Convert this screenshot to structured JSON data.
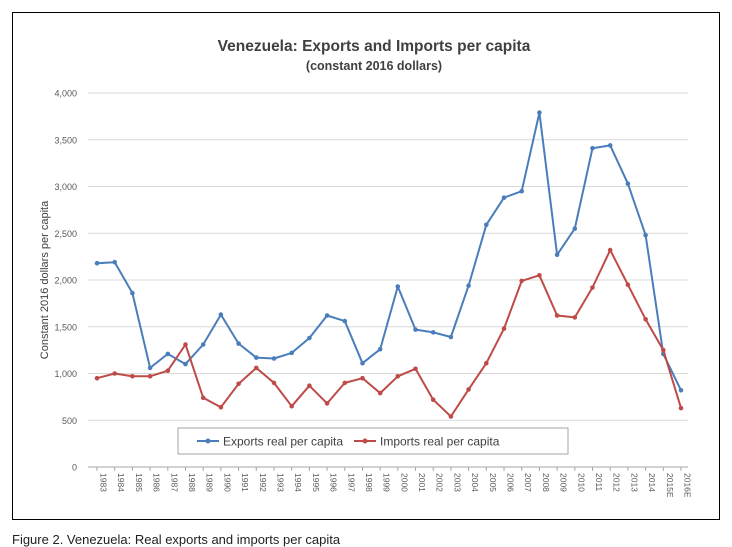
{
  "caption": "Figure 2. Venezuela: Real exports and imports per capita",
  "chart_data": {
    "type": "line",
    "title": "Venezuela: Exports and Imports per capita",
    "subtitle": "(constant 2016 dollars)",
    "xlabel": "",
    "ylabel": "Constant 2016 dollars per capita",
    "ylim": [
      0,
      4000
    ],
    "yticks": [
      "0",
      "500",
      "1,000",
      "1,500",
      "2,000",
      "2,500",
      "3,000",
      "3,500",
      "4,000"
    ],
    "grid": true,
    "legend_position": "bottom-center",
    "categories": [
      "1983",
      "1984",
      "1985",
      "1986",
      "1987",
      "1988",
      "1989",
      "1990",
      "1991",
      "1992",
      "1993",
      "1994",
      "1995",
      "1996",
      "1997",
      "1998",
      "1999",
      "2000",
      "2001",
      "2002",
      "2003",
      "2004",
      "2005",
      "2006",
      "2007",
      "2008",
      "2009",
      "2010",
      "2011",
      "2012",
      "2013",
      "2014",
      "2015E",
      "2016E"
    ],
    "series": [
      {
        "name": "Exports real per capita",
        "color": "#4a7ebb",
        "values": [
          2180,
          2190,
          1860,
          1060,
          1210,
          1100,
          1310,
          1630,
          1320,
          1170,
          1160,
          1220,
          1380,
          1620,
          1560,
          1110,
          1260,
          1930,
          1470,
          1440,
          1390,
          1940,
          2590,
          2880,
          2950,
          3790,
          2270,
          2550,
          3410,
          3440,
          3030,
          2480,
          1210,
          820
        ]
      },
      {
        "name": "Imports real per capita",
        "color": "#be4b48",
        "values": [
          950,
          1000,
          970,
          970,
          1030,
          1310,
          740,
          640,
          890,
          1060,
          900,
          650,
          870,
          680,
          900,
          950,
          790,
          970,
          1050,
          720,
          540,
          830,
          1110,
          1480,
          1990,
          2050,
          1620,
          1600,
          1920,
          2320,
          1950,
          1580,
          1250,
          630
        ]
      }
    ]
  }
}
